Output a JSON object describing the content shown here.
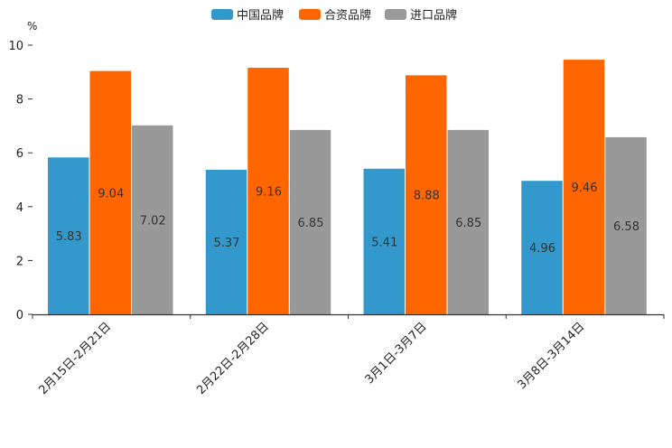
{
  "chart_data": {
    "type": "bar",
    "title": "",
    "unit_label": "%",
    "xlabel": "",
    "ylabel": "%",
    "ylim": [
      0,
      10
    ],
    "yticks": [
      0,
      2,
      4,
      6,
      8,
      10
    ],
    "grid": false,
    "legend_position": "top-center",
    "categories": [
      "2月15日-2月21日",
      "2月22日-2月28日",
      "3月1日-3月7日",
      "3月8日-3月14日"
    ],
    "series": [
      {
        "name": "中国品牌",
        "color": "#3399cc",
        "values": [
          5.83,
          5.37,
          5.41,
          4.96
        ]
      },
      {
        "name": "合资品牌",
        "color": "#ff6600",
        "values": [
          9.04,
          9.16,
          8.88,
          9.46
        ]
      },
      {
        "name": "进口品牌",
        "color": "#999999",
        "values": [
          7.02,
          6.85,
          6.85,
          6.58
        ]
      }
    ]
  }
}
